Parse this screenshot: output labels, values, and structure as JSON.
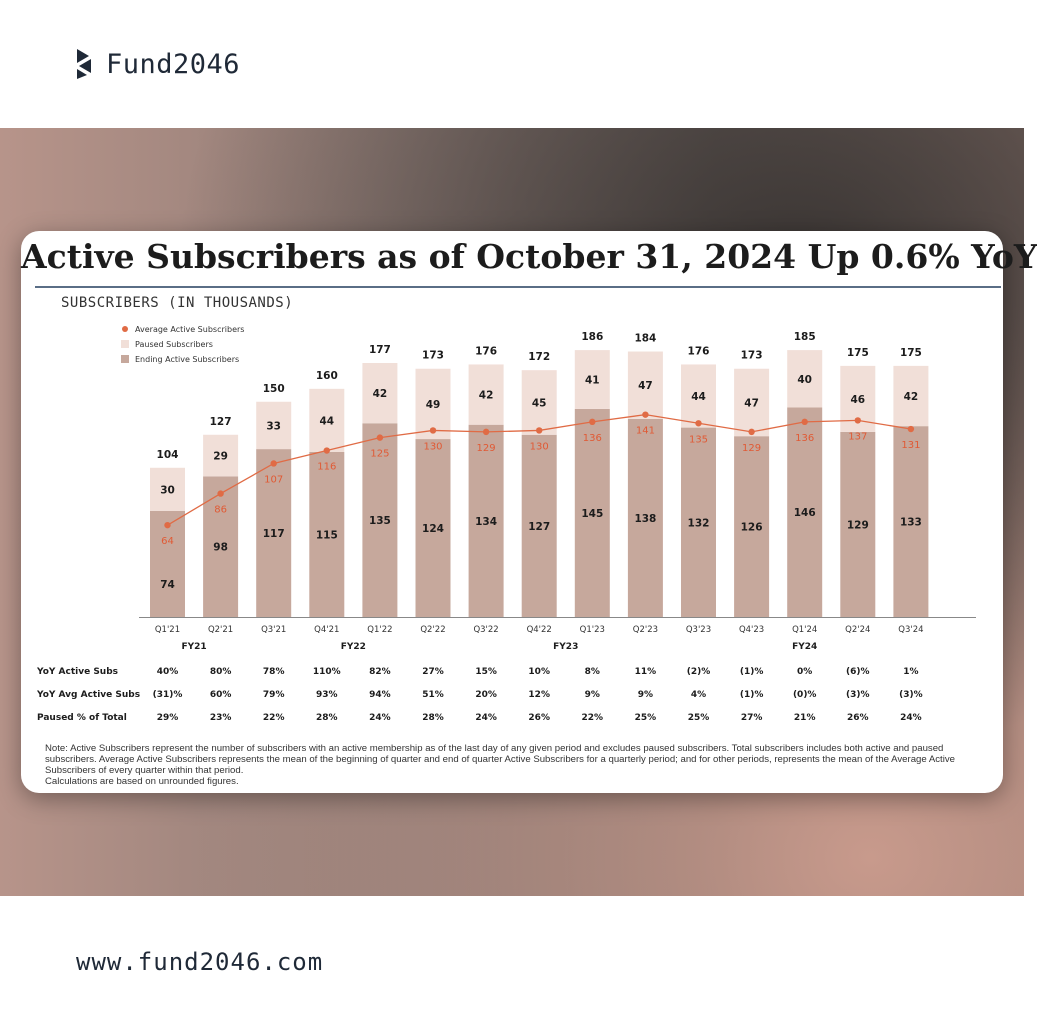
{
  "brand": {
    "name": "Fund2046",
    "logo_icon": "fund2046-logo-icon"
  },
  "footer": {
    "url": "www.fund2046.com"
  },
  "colors": {
    "ending_active": "#c6a89c",
    "paused": "#f1dfd8",
    "average_line": "#e06b45",
    "average_label": "#e05a35"
  },
  "chart_data": {
    "type": "bar",
    "title": "Active Subscribers as of October 31, 2024 Up 0.6% YoY",
    "subtitle": "SUBSCRIBERS (IN THOUSANDS)",
    "legend": [
      "Average Active Subscribers",
      "Paused Subscribers",
      "Ending Active Subscribers"
    ],
    "legend_position": "top-left",
    "categories": [
      "Q1'21",
      "Q2'21",
      "Q3'21",
      "Q4'21",
      "Q1'22",
      "Q2'22",
      "Q3'22",
      "Q4'22",
      "Q1'23",
      "Q2'23",
      "Q3'23",
      "Q4'23",
      "Q1'24",
      "Q2'24",
      "Q3'24"
    ],
    "fiscal_years": [
      {
        "label": "FY21",
        "from": 0,
        "to": 1
      },
      {
        "label": "FY22",
        "from": 2,
        "to": 5
      },
      {
        "label": "FY23",
        "from": 6,
        "to": 9
      },
      {
        "label": "FY24",
        "from": 10,
        "to": 14
      }
    ],
    "series": [
      {
        "name": "Ending Active Subscribers",
        "type": "bar",
        "values": [
          74,
          98,
          117,
          115,
          135,
          124,
          134,
          127,
          145,
          138,
          132,
          126,
          146,
          129,
          133
        ]
      },
      {
        "name": "Paused Subscribers",
        "type": "bar",
        "values": [
          30,
          29,
          33,
          44,
          42,
          49,
          42,
          45,
          41,
          47,
          44,
          47,
          40,
          46,
          42
        ]
      },
      {
        "name": "Average Active Subscribers",
        "type": "line",
        "values": [
          64,
          86,
          107,
          116,
          125,
          130,
          129,
          130,
          136,
          141,
          135,
          129,
          136,
          137,
          131
        ]
      }
    ],
    "totals": [
      104,
      127,
      150,
      160,
      177,
      173,
      176,
      172,
      186,
      184,
      176,
      173,
      185,
      175,
      175
    ],
    "ylim": [
      0,
      200
    ],
    "table": {
      "rows": [
        {
          "label": "YoY Active Subs",
          "values": [
            "40%",
            "80%",
            "78%",
            "110%",
            "82%",
            "27%",
            "15%",
            "10%",
            "8%",
            "11%",
            "(2)%",
            "(1)%",
            "0%",
            "(6)%",
            "1%"
          ]
        },
        {
          "label": "YoY Avg Active Subs",
          "values": [
            "(31)%",
            "60%",
            "79%",
            "93%",
            "94%",
            "51%",
            "20%",
            "12%",
            "9%",
            "9%",
            "4%",
            "(1)%",
            "(0)%",
            "(3)%",
            "(3)%"
          ]
        },
        {
          "label": "Paused % of Total",
          "values": [
            "29%",
            "23%",
            "22%",
            "28%",
            "24%",
            "28%",
            "24%",
            "26%",
            "22%",
            "25%",
            "25%",
            "27%",
            "21%",
            "26%",
            "24%"
          ]
        }
      ]
    }
  },
  "note": [
    "Note: Active Subscribers represent the number of subscribers with an active membership as of the last day of any given period and excludes paused subscribers. Total subscribers includes both active and paused subscribers. Average Active Subscribers represents the mean of the beginning of quarter and end of quarter Active Subscribers for a quarterly period; and for other periods, represents the mean of the Average Active Subscribers of every quarter within that period.",
    "Calculations are based on unrounded figures."
  ]
}
